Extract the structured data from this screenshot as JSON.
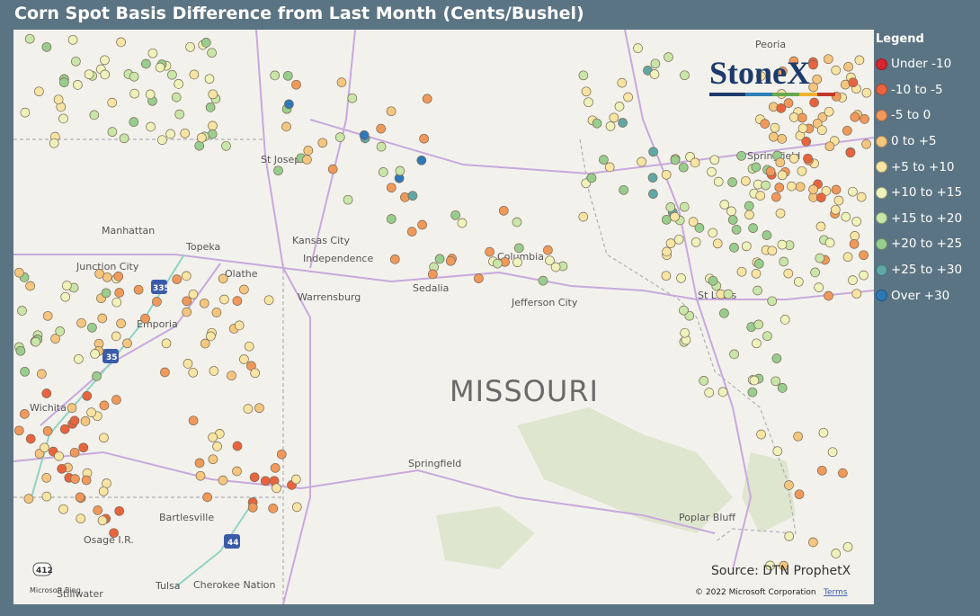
{
  "header": {
    "title": "Corn Spot Basis Difference from Last Month (Cents/Bushel)"
  },
  "legend": {
    "title": "Legend",
    "items": [
      {
        "label": "Under -10",
        "color": "#d7262e"
      },
      {
        "label": "-10 to -5",
        "color": "#e8643f"
      },
      {
        "label": "-5 to 0",
        "color": "#f0995a"
      },
      {
        "label": "0 to +5",
        "color": "#f5c67f"
      },
      {
        "label": "+5 to +10",
        "color": "#f8e5a3"
      },
      {
        "label": "+10 to +15",
        "color": "#eff3bb"
      },
      {
        "label": "+15 to +20",
        "color": "#c8e6a8"
      },
      {
        "label": "+20 to +25",
        "color": "#97ce8e"
      },
      {
        "label": "+25 to +30",
        "color": "#5fa8a5"
      },
      {
        "label": "Over +30",
        "color": "#2c78b8"
      }
    ]
  },
  "map": {
    "cities": [
      "St Joseph",
      "Manhattan",
      "Topeka",
      "Junction City",
      "Olathe",
      "Kansas City",
      "Independence",
      "Columbia",
      "Warrensburg",
      "Sedalia",
      "Jefferson City",
      "Emporia",
      "St Louis",
      "Wichita",
      "Springfield",
      "Bartlesville",
      "Osage I.R.",
      "Tulsa",
      "Cherokee Nation",
      "Stillwater",
      "Poplar Bluff",
      "Springfield",
      "Peoria"
    ],
    "state_label": "MISSOURI",
    "shields": [
      "335",
      "35",
      "44",
      "412"
    ]
  },
  "logo": "StoneX",
  "footer": {
    "source": "Source: DTN ProphetX",
    "copyright": "© 2022 Microsoft Corporation",
    "terms": "Terms",
    "provider": "Microsoft Bing"
  }
}
